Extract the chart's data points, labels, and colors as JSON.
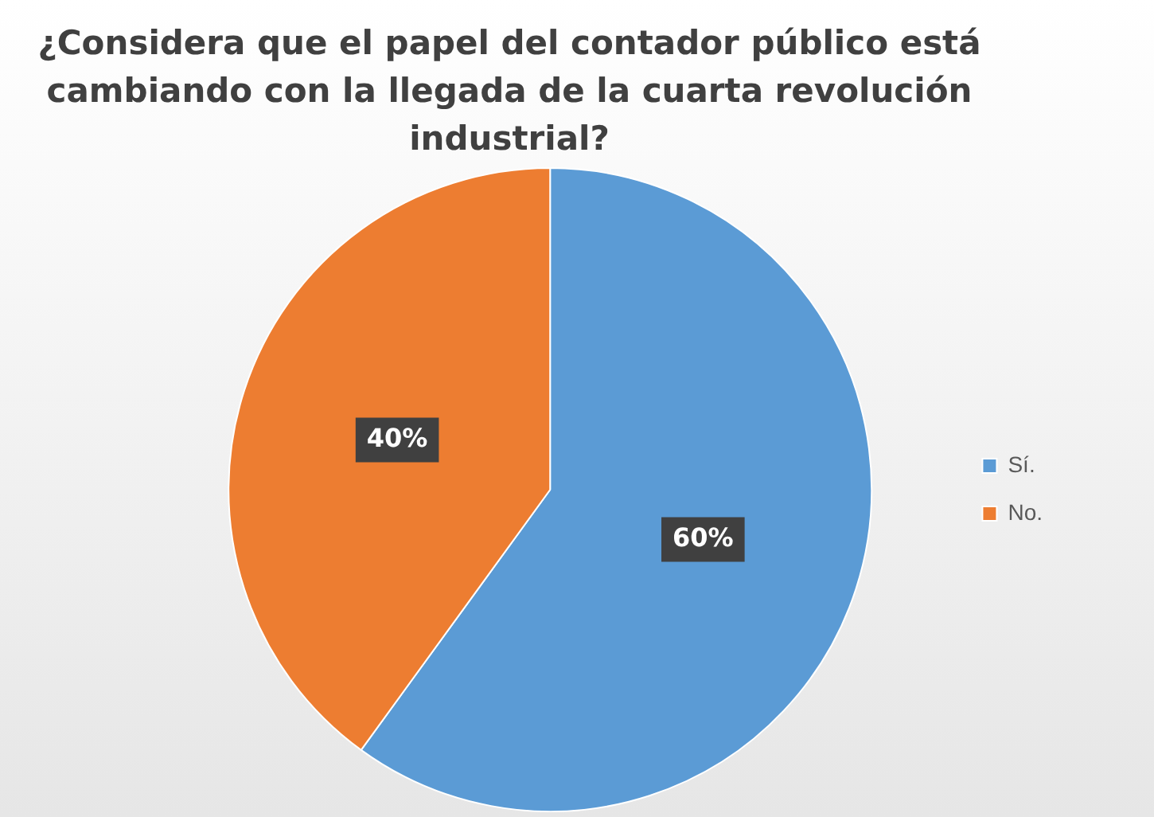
{
  "chart_data": {
    "type": "pie",
    "title": "¿Considera que el papel del contador público está cambiando con la llegada de la cuarta revolución industrial?",
    "categories": [
      "Sí.",
      "No."
    ],
    "values": [
      60,
      40
    ],
    "value_labels": [
      "60%",
      "40%"
    ],
    "colors": [
      "#5b9bd5",
      "#ed7d31"
    ],
    "legend": "right"
  }
}
